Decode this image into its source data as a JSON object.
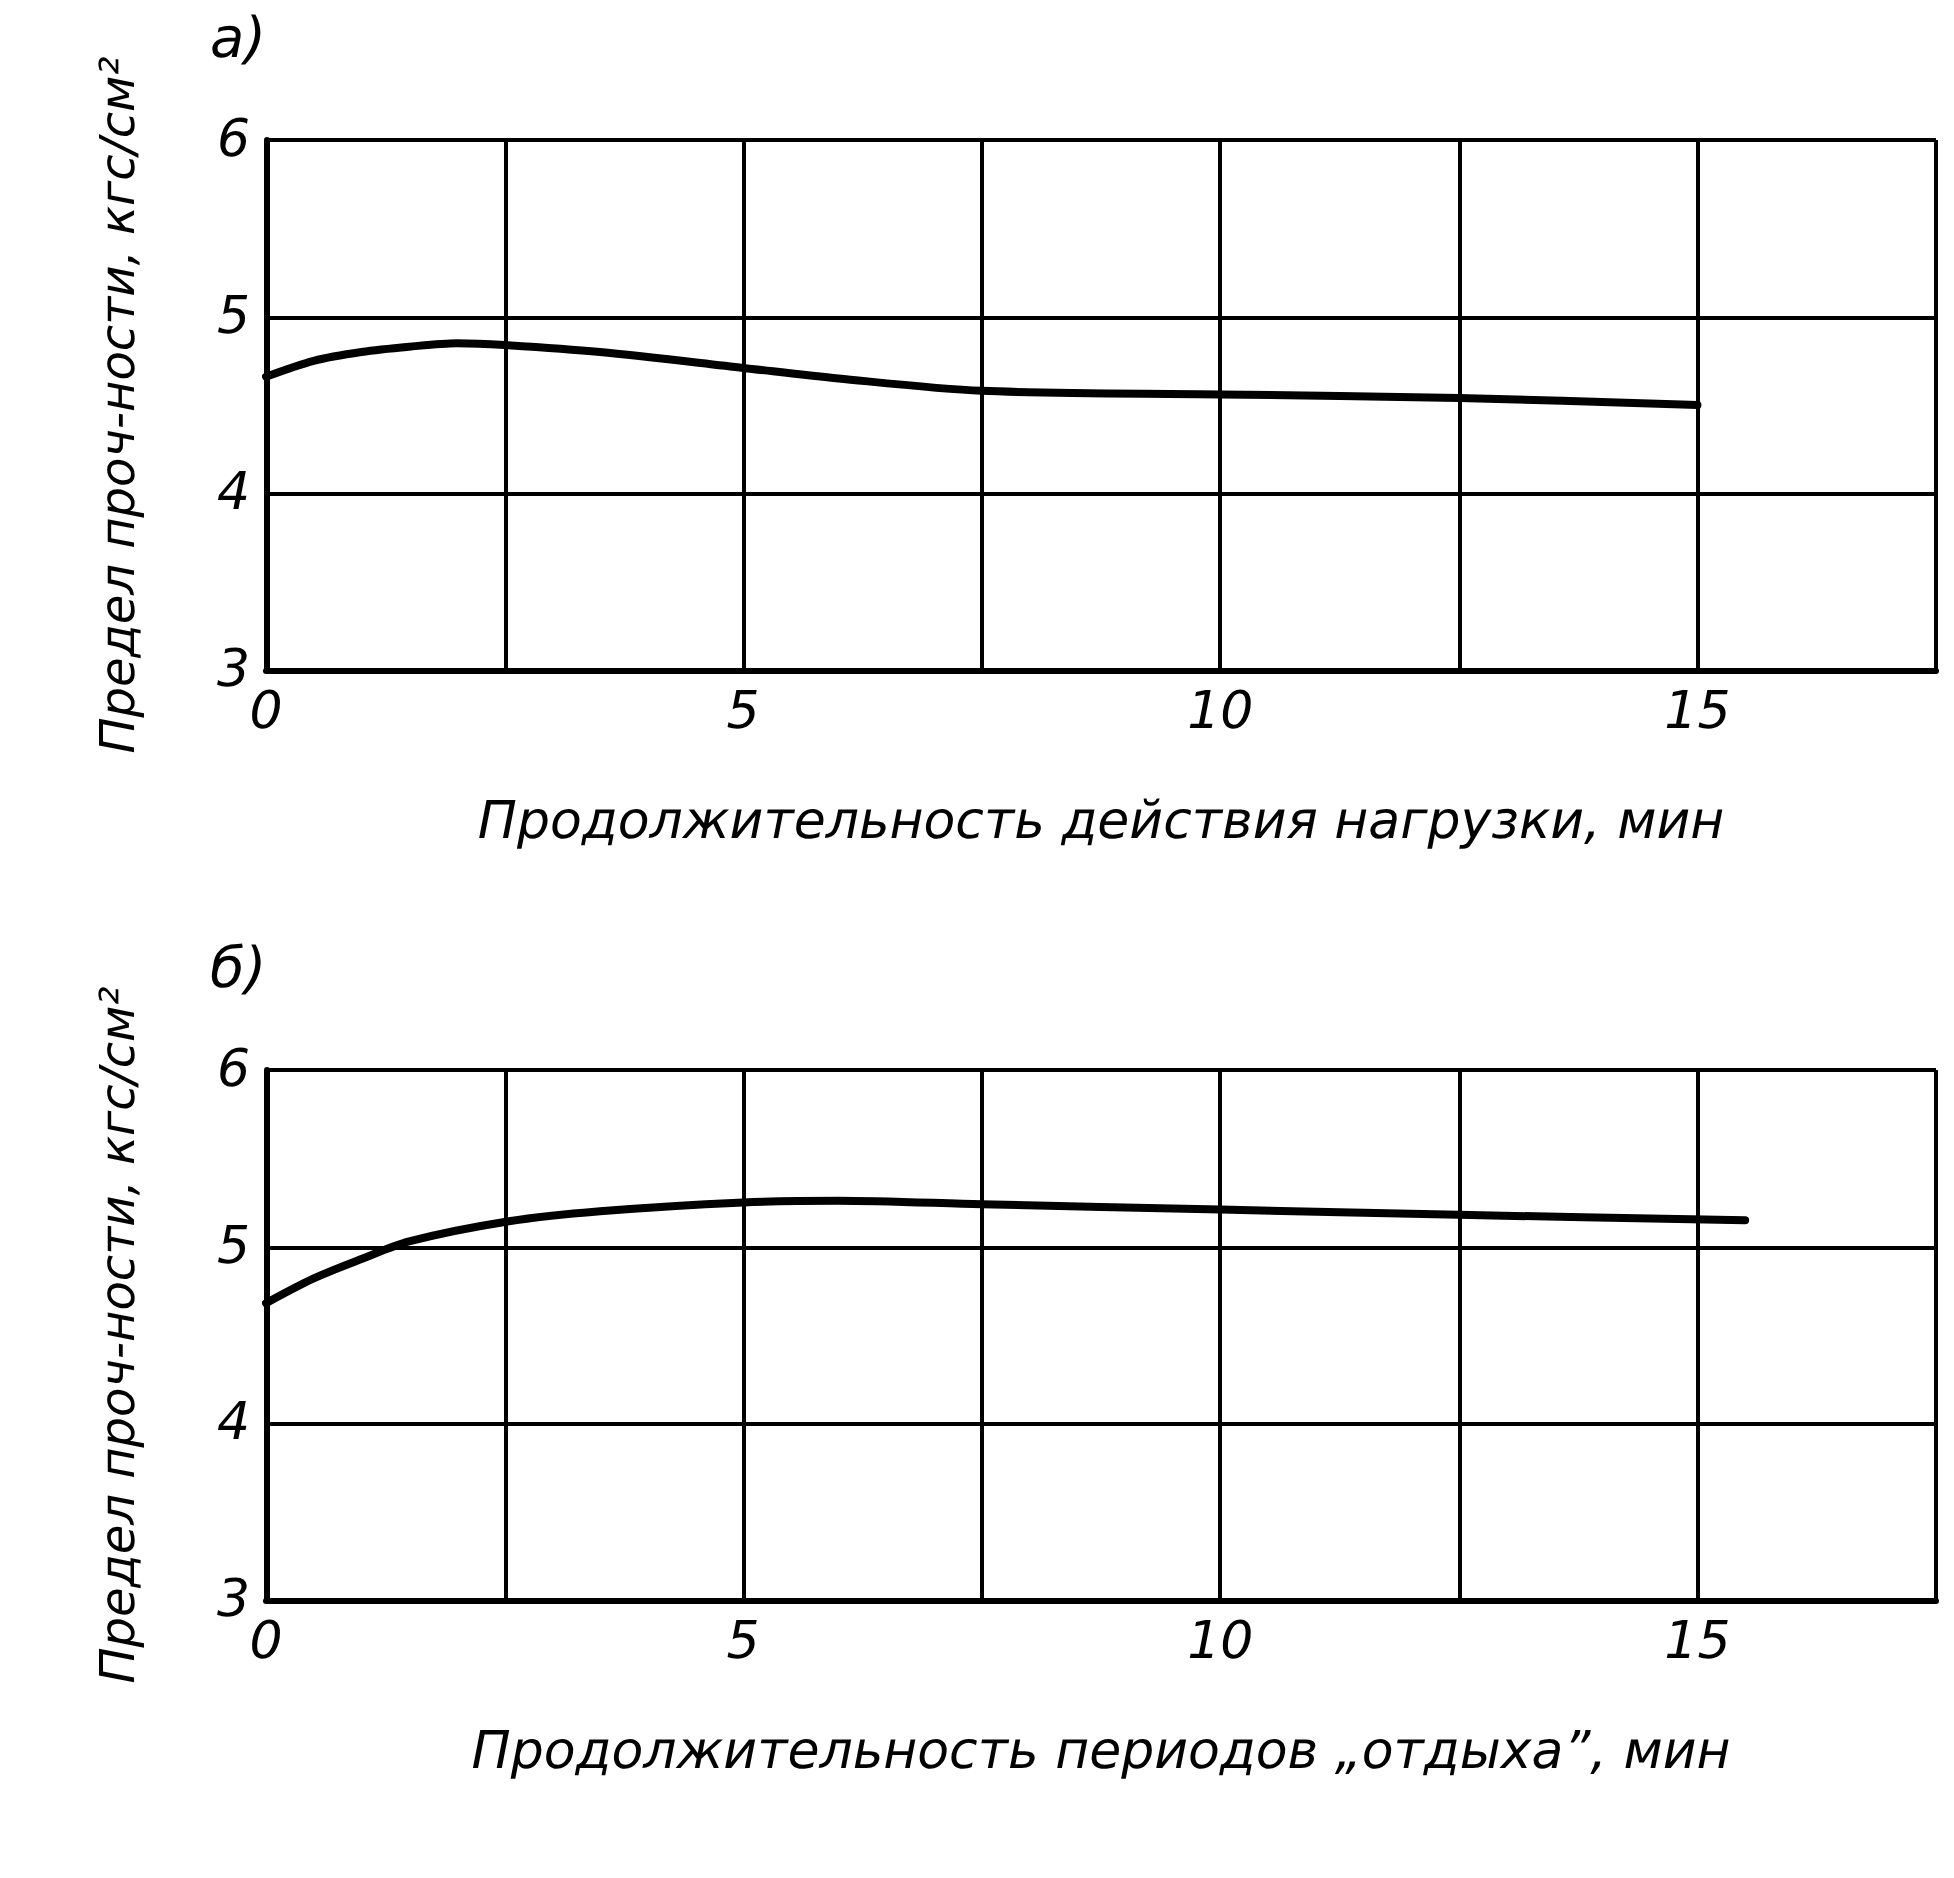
{
  "chart_data": [
    {
      "type": "line",
      "title": "а)",
      "xlabel": "Продолжительность действия нагрузки, мин",
      "ylabel": "Предел проч-ности, кгс/см²",
      "xlim": [
        0,
        17.5
      ],
      "xticks": [
        0,
        {
          "value": 2.5,
          "label": null
        },
        5,
        {
          "value": 7.5,
          "label": null
        },
        10,
        {
          "value": 12.5,
          "label": null
        },
        15
      ],
      "ylim": [
        3,
        6
      ],
      "yticks": [
        3,
        4,
        5,
        6
      ],
      "grid": true,
      "marker": "none",
      "line_style": "solid",
      "series": [
        {
          "color": "#000000",
          "x": [
            0,
            0.5,
            1,
            1.5,
            2,
            2.5,
            3.5,
            5,
            6,
            7.5,
            10,
            12.5,
            15
          ],
          "values": [
            4.66,
            4.75,
            4.8,
            4.83,
            4.85,
            4.84,
            4.8,
            4.71,
            4.65,
            4.58,
            4.56,
            4.54,
            4.5
          ]
        }
      ]
    },
    {
      "type": "line",
      "title": "б)",
      "xlabel": "Продолжительность периодов „отдыха”, мин",
      "ylabel": "Предел проч-ности, кгс/см²",
      "xlim": [
        0,
        17.5
      ],
      "xticks": [
        0,
        {
          "value": 2.5,
          "label": null
        },
        5,
        {
          "value": 7.5,
          "label": null
        },
        10,
        {
          "value": 12.5,
          "label": null
        },
        15
      ],
      "ylim": [
        3,
        6
      ],
      "yticks": [
        3,
        4,
        5,
        6
      ],
      "grid": true,
      "marker": "none",
      "line_style": "solid",
      "series": [
        {
          "color": "#000000",
          "x": [
            0,
            0.5,
            1,
            1.5,
            2.5,
            3.5,
            5,
            6,
            7.5,
            10,
            12.5,
            15.5
          ],
          "values": [
            4.68,
            4.82,
            4.93,
            5.03,
            5.14,
            5.2,
            5.25,
            5.26,
            5.24,
            5.21,
            5.18,
            5.15
          ]
        }
      ]
    }
  ]
}
